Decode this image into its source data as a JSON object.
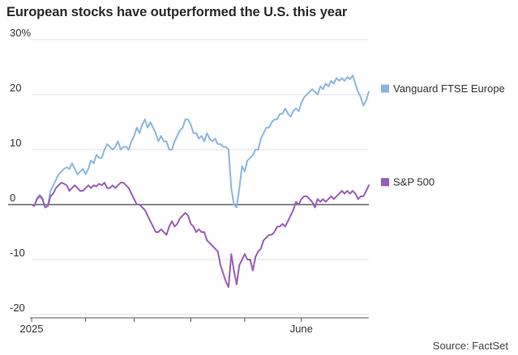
{
  "header": {
    "title": "European stocks have outperformed the U.S. this year"
  },
  "footer": {
    "source": "Source: FactSet"
  },
  "colors": {
    "europe": "#8ab6df",
    "sp500": "#9a5cb8",
    "grid": "#e2e2e2",
    "zero_line": "#111111",
    "axis": "#555555"
  },
  "chart_data": {
    "type": "line",
    "title": "European stocks have outperformed the U.S. this year",
    "xlabel": "",
    "ylabel": "",
    "ylim": [
      -20,
      30
    ],
    "xlim": [
      0,
      125
    ],
    "y_ticks": [
      {
        "value": 30,
        "label": "30%"
      },
      {
        "value": 20,
        "label": "20"
      },
      {
        "value": 10,
        "label": "10"
      },
      {
        "value": 0,
        "label": "0"
      },
      {
        "value": -10,
        "label": "-10"
      },
      {
        "value": -20,
        "label": "-20"
      }
    ],
    "x_ticks": [
      {
        "day": 0,
        "label": "2025"
      },
      {
        "day": 20,
        "label": ""
      },
      {
        "day": 38,
        "label": ""
      },
      {
        "day": 59,
        "label": ""
      },
      {
        "day": 79,
        "label": ""
      },
      {
        "day": 100,
        "label": "June"
      }
    ],
    "grid": true,
    "legend": "right",
    "series": [
      {
        "name": "Vanguard FTSE Europe",
        "color": "#8ab6df",
        "points": [
          [
            0,
            0
          ],
          [
            1,
            -0.3
          ],
          [
            2,
            1.2
          ],
          [
            3,
            1.8
          ],
          [
            4,
            1.2
          ],
          [
            5,
            -0.5
          ],
          [
            6,
            -0.2
          ],
          [
            7,
            2.5
          ],
          [
            8,
            3.5
          ],
          [
            9,
            4.5
          ],
          [
            10,
            5.5
          ],
          [
            11,
            6
          ],
          [
            12,
            6.5
          ],
          [
            13,
            6.8
          ],
          [
            14,
            6.5
          ],
          [
            15,
            7.5
          ],
          [
            16,
            6.5
          ],
          [
            17,
            5.5
          ],
          [
            18,
            6
          ],
          [
            19,
            6.5
          ],
          [
            20,
            5.5
          ],
          [
            21,
            6.5
          ],
          [
            22,
            8
          ],
          [
            23,
            7.5
          ],
          [
            24,
            9
          ],
          [
            25,
            8.5
          ],
          [
            26,
            8.5
          ],
          [
            27,
            10
          ],
          [
            28,
            11
          ],
          [
            29,
            10.5
          ],
          [
            30,
            10
          ],
          [
            31,
            10.5
          ],
          [
            32,
            11.5
          ],
          [
            33,
            10
          ],
          [
            34,
            10.5
          ],
          [
            35,
            10.5
          ],
          [
            36,
            10
          ],
          [
            37,
            11.5
          ],
          [
            38,
            12.5
          ],
          [
            39,
            14
          ],
          [
            40,
            13
          ],
          [
            41,
            14.5
          ],
          [
            42,
            15.5
          ],
          [
            43,
            14
          ],
          [
            44,
            15
          ],
          [
            45,
            14
          ],
          [
            46,
            13
          ],
          [
            47,
            11.5
          ],
          [
            48,
            12.5
          ],
          [
            49,
            11.5
          ],
          [
            50,
            11.5
          ],
          [
            51,
            10
          ],
          [
            52,
            10
          ],
          [
            53,
            11.5
          ],
          [
            54,
            12.5
          ],
          [
            55,
            13.5
          ],
          [
            56,
            14
          ],
          [
            57,
            15.5
          ],
          [
            58,
            15.5
          ],
          [
            59,
            14.5
          ],
          [
            60,
            13
          ],
          [
            61,
            13
          ],
          [
            62,
            12
          ],
          [
            63,
            12.5
          ],
          [
            64,
            11.5
          ],
          [
            65,
            13
          ],
          [
            66,
            12
          ],
          [
            67,
            11.5
          ],
          [
            68,
            12
          ],
          [
            69,
            11
          ],
          [
            70,
            11
          ],
          [
            71,
            10.5
          ],
          [
            72,
            10.5
          ],
          [
            73,
            10
          ],
          [
            74,
            3
          ],
          [
            75,
            0
          ],
          [
            76,
            -0.5
          ],
          [
            77,
            3
          ],
          [
            78,
            7
          ],
          [
            79,
            6
          ],
          [
            80,
            8
          ],
          [
            81,
            8.5
          ],
          [
            82,
            9
          ],
          [
            83,
            10
          ],
          [
            84,
            10
          ],
          [
            85,
            12
          ],
          [
            86,
            13
          ],
          [
            87,
            14
          ],
          [
            88,
            14
          ],
          [
            89,
            15
          ],
          [
            90,
            15.5
          ],
          [
            91,
            15.5
          ],
          [
            92,
            16.5
          ],
          [
            93,
            16.5
          ],
          [
            94,
            17.5
          ],
          [
            95,
            16.5
          ],
          [
            96,
            16
          ],
          [
            97,
            17
          ],
          [
            98,
            17.5
          ],
          [
            99,
            17
          ],
          [
            100,
            18.5
          ],
          [
            101,
            19.5
          ],
          [
            102,
            20
          ],
          [
            103,
            20.5
          ],
          [
            104,
            21
          ],
          [
            105,
            20.5
          ],
          [
            106,
            20
          ],
          [
            107,
            21.5
          ],
          [
            108,
            21
          ],
          [
            109,
            22
          ],
          [
            110,
            21.5
          ],
          [
            111,
            22.5
          ],
          [
            112,
            22
          ],
          [
            113,
            23
          ],
          [
            114,
            22.5
          ],
          [
            115,
            23
          ],
          [
            116,
            22.5
          ],
          [
            117,
            23.2
          ],
          [
            118,
            22.8
          ],
          [
            119,
            23.5
          ],
          [
            120,
            22
          ],
          [
            121,
            20.5
          ],
          [
            122,
            19.5
          ],
          [
            123,
            18
          ],
          [
            124,
            19
          ],
          [
            125,
            20.5
          ]
        ]
      },
      {
        "name": "S&P 500",
        "color": "#9a5cb8",
        "points": [
          [
            0,
            0
          ],
          [
            1,
            -0.2
          ],
          [
            2,
            1
          ],
          [
            3,
            1.5
          ],
          [
            4,
            1
          ],
          [
            5,
            -0.5
          ],
          [
            6,
            -0.3
          ],
          [
            7,
            1.5
          ],
          [
            8,
            2
          ],
          [
            9,
            3
          ],
          [
            10,
            3.5
          ],
          [
            11,
            4
          ],
          [
            12,
            3.8
          ],
          [
            13,
            3.5
          ],
          [
            14,
            2.5
          ],
          [
            15,
            3
          ],
          [
            16,
            3.5
          ],
          [
            17,
            3
          ],
          [
            18,
            2.5
          ],
          [
            19,
            2.5
          ],
          [
            20,
            3
          ],
          [
            21,
            3.5
          ],
          [
            22,
            3
          ],
          [
            23,
            3.5
          ],
          [
            24,
            3.3
          ],
          [
            25,
            3.8
          ],
          [
            26,
            3.5
          ],
          [
            27,
            4
          ],
          [
            28,
            3
          ],
          [
            29,
            3
          ],
          [
            30,
            3.5
          ],
          [
            31,
            3
          ],
          [
            32,
            3.5
          ],
          [
            33,
            4
          ],
          [
            34,
            4
          ],
          [
            35,
            3.5
          ],
          [
            36,
            3
          ],
          [
            37,
            2
          ],
          [
            38,
            1
          ],
          [
            39,
            0
          ],
          [
            40,
            0
          ],
          [
            41,
            -0.5
          ],
          [
            42,
            -1
          ],
          [
            43,
            -2
          ],
          [
            44,
            -3
          ],
          [
            45,
            -4
          ],
          [
            46,
            -5
          ],
          [
            47,
            -5
          ],
          [
            48,
            -4.5
          ],
          [
            49,
            -5
          ],
          [
            50,
            -5.5
          ],
          [
            51,
            -4
          ],
          [
            52,
            -3
          ],
          [
            53,
            -4
          ],
          [
            54,
            -3.5
          ],
          [
            55,
            -2.5
          ],
          [
            56,
            -2
          ],
          [
            57,
            -1.5
          ],
          [
            58,
            -2
          ],
          [
            59,
            -3.5
          ],
          [
            60,
            -4
          ],
          [
            61,
            -5
          ],
          [
            62,
            -4.5
          ],
          [
            63,
            -5
          ],
          [
            64,
            -5
          ],
          [
            65,
            -6.5
          ],
          [
            66,
            -7
          ],
          [
            67,
            -7.5
          ],
          [
            68,
            -8
          ],
          [
            69,
            -8.5
          ],
          [
            70,
            -11
          ],
          [
            71,
            -12.5
          ],
          [
            72,
            -14
          ],
          [
            73,
            -15
          ],
          [
            74,
            -9
          ],
          [
            75,
            -12
          ],
          [
            76,
            -14.5
          ],
          [
            77,
            -11
          ],
          [
            78,
            -10
          ],
          [
            79,
            -9
          ],
          [
            80,
            -10
          ],
          [
            81,
            -10
          ],
          [
            82,
            -12
          ],
          [
            83,
            -9.5
          ],
          [
            84,
            -8.5
          ],
          [
            85,
            -8
          ],
          [
            86,
            -6.5
          ],
          [
            87,
            -6
          ],
          [
            88,
            -5.5
          ],
          [
            89,
            -5.5
          ],
          [
            90,
            -5
          ],
          [
            91,
            -4
          ],
          [
            92,
            -4
          ],
          [
            93,
            -3.5
          ],
          [
            94,
            -4
          ],
          [
            95,
            -3
          ],
          [
            96,
            -2
          ],
          [
            97,
            -1
          ],
          [
            98,
            0.5
          ],
          [
            99,
            0
          ],
          [
            100,
            1
          ],
          [
            101,
            1.5
          ],
          [
            102,
            1.5
          ],
          [
            103,
            1
          ],
          [
            104,
            0.5
          ],
          [
            105,
            -0.5
          ],
          [
            106,
            1
          ],
          [
            107,
            0.5
          ],
          [
            108,
            1
          ],
          [
            109,
            0.5
          ],
          [
            110,
            1
          ],
          [
            111,
            1.5
          ],
          [
            112,
            1
          ],
          [
            113,
            1.5
          ],
          [
            114,
            2
          ],
          [
            115,
            2.5
          ],
          [
            116,
            2
          ],
          [
            117,
            2.5
          ],
          [
            118,
            2
          ],
          [
            119,
            2.5
          ],
          [
            120,
            2
          ],
          [
            121,
            1
          ],
          [
            122,
            1.5
          ],
          [
            123,
            1.5
          ],
          [
            124,
            2.5
          ],
          [
            125,
            3.5
          ]
        ]
      }
    ]
  }
}
